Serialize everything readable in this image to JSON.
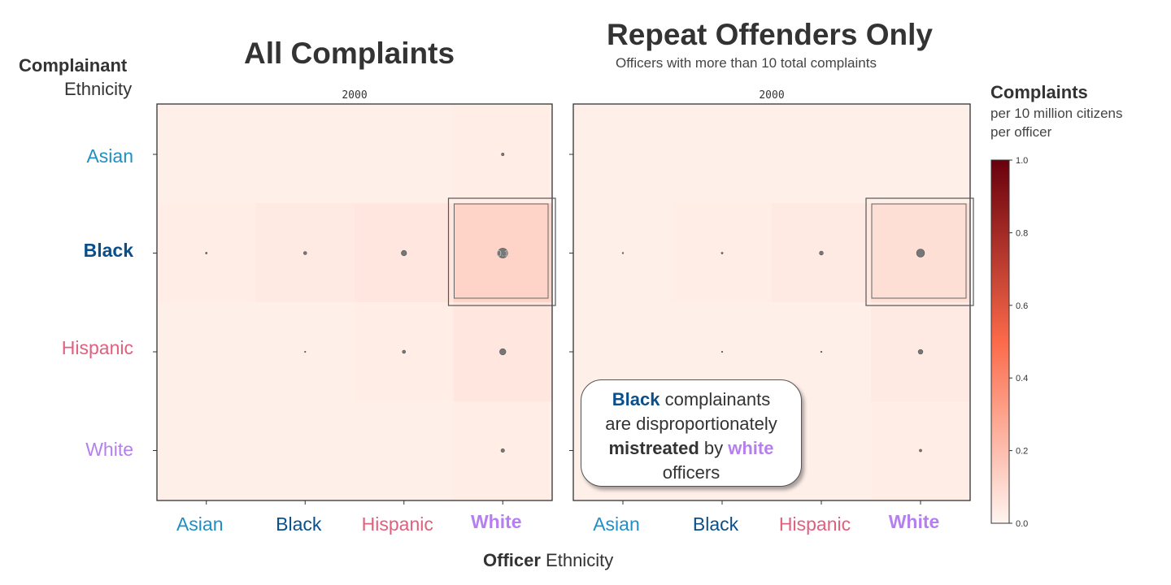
{
  "header": {
    "y_axis_title_bold": "Complainant",
    "y_axis_title_regular": "Ethnicity",
    "x_axis_title_bold": "Officer",
    "x_axis_title_regular": "Ethnicity"
  },
  "colorbar": {
    "title": "Complaints",
    "subtitle_line1": "per 10 million citizens",
    "subtitle_line2": "per officer",
    "ticks": [
      "0.0",
      "0.2",
      "0.4",
      "0.6",
      "0.8",
      "1.0"
    ],
    "range": [
      0,
      1
    ],
    "colors": {
      "low": "#fff5f0",
      "mid": "#fb6a4a",
      "high": "#67000d"
    }
  },
  "annotation": {
    "word1": "Black",
    "text1": " complainants",
    "line2": "are disproportionately",
    "word3": "mistreated",
    "text3": " by ",
    "word4": "white",
    "line4": "officers"
  },
  "label_colors": {
    "Asian": "#1f8fc4",
    "Black": "#0b4f8a",
    "Hispanic": "#e0607e",
    "White": "#b57ff0"
  },
  "chart_data": [
    {
      "type": "heatmap",
      "title": "All Complaints",
      "subtitle": "",
      "frame_label": "2000",
      "xlabel": "Officer Ethnicity",
      "ylabel": "Complainant Ethnicity",
      "x": [
        "Asian",
        "Black",
        "Hispanic",
        "White"
      ],
      "y": [
        "Asian",
        "Black",
        "Hispanic",
        "White"
      ],
      "values": [
        [
          0.02,
          0.02,
          0.02,
          0.03
        ],
        [
          0.03,
          0.04,
          0.05,
          0.12
        ],
        [
          0.02,
          0.02,
          0.03,
          0.05
        ],
        [
          0.02,
          0.02,
          0.02,
          0.03
        ]
      ],
      "bubble_sizes": [
        [
          0,
          0,
          0,
          0.15
        ],
        [
          0.1,
          0.18,
          0.3,
          0.55
        ],
        [
          0,
          0.05,
          0.18,
          0.35
        ],
        [
          0,
          0,
          0,
          0.2
        ]
      ],
      "highlight_cell": [
        "Black",
        "White"
      ],
      "highlight_value_label": "0.1"
    },
    {
      "type": "heatmap",
      "title": "Repeat Offenders Only",
      "subtitle": "Officers with more than 10 total complaints",
      "frame_label": "2000",
      "xlabel": "Officer Ethnicity",
      "ylabel": "Complainant Ethnicity",
      "x": [
        "Asian",
        "Black",
        "Hispanic",
        "White"
      ],
      "y": [
        "Asian",
        "Black",
        "Hispanic",
        "White"
      ],
      "values": [
        [
          0.02,
          0.02,
          0.02,
          0.02
        ],
        [
          0.02,
          0.03,
          0.04,
          0.08
        ],
        [
          0.02,
          0.02,
          0.02,
          0.04
        ],
        [
          0.02,
          0.02,
          0.02,
          0.03
        ]
      ],
      "bubble_sizes": [
        [
          0,
          0,
          0,
          0
        ],
        [
          0.08,
          0.1,
          0.22,
          0.45
        ],
        [
          0,
          0.05,
          0.08,
          0.26
        ],
        [
          0,
          0,
          0,
          0.14
        ]
      ],
      "highlight_cell": [
        "Black",
        "White"
      ]
    }
  ]
}
